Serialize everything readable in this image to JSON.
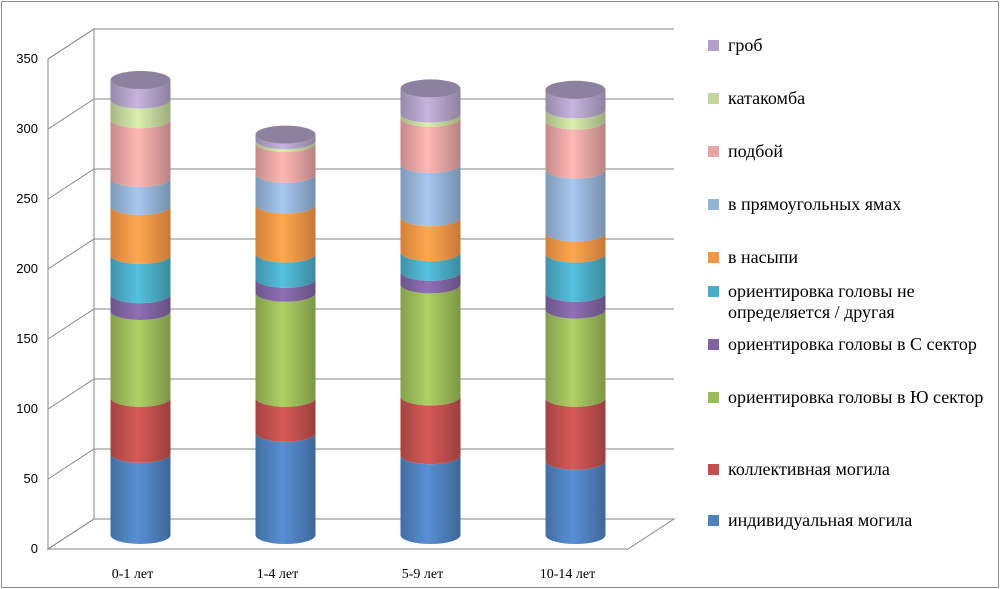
{
  "chart_data": {
    "type": "bar",
    "stacked": true,
    "three_d": true,
    "categories": [
      "0-1 лет",
      "1-4 лет",
      "5-9 лет",
      "10-14 лет"
    ],
    "ylim": [
      0,
      350
    ],
    "yticks": [
      "0",
      "50",
      "100",
      "150",
      "200",
      "250",
      "300",
      "350"
    ],
    "grid": true,
    "legend_position": "right",
    "series": [
      {
        "name": "индивидуальная могила",
        "color": "#4f81bd",
        "values": [
          58,
          73,
          57,
          53
        ]
      },
      {
        "name": "коллективная могила",
        "color": "#c0504d",
        "values": [
          40,
          25,
          42,
          45
        ]
      },
      {
        "name": "ориентировка головы в Ю сектор",
        "color": "#9bbb59",
        "values": [
          62,
          75,
          80,
          63
        ]
      },
      {
        "name": "ориентировка головы в С сектор",
        "color": "#8064a2",
        "values": [
          12,
          10,
          9,
          12
        ]
      },
      {
        "name": "ориентировка головы не определяется / другая",
        "color": "#4bacc6",
        "values": [
          28,
          18,
          14,
          28
        ]
      },
      {
        "name": "в насыпи",
        "color": "#f79646",
        "values": [
          35,
          35,
          25,
          15
        ]
      },
      {
        "name": "в прямоугольных ямах",
        "color": "#95b3d7",
        "values": [
          20,
          22,
          38,
          45
        ]
      },
      {
        "name": "подбой",
        "color": "#e6a4a2",
        "values": [
          42,
          22,
          33,
          35
        ]
      },
      {
        "name": "катакомба",
        "color": "#c3d69b",
        "values": [
          14,
          2,
          3,
          8
        ]
      },
      {
        "name": "гроб",
        "color": "#b2a1c7",
        "values": [
          14,
          4,
          18,
          14
        ]
      }
    ]
  }
}
